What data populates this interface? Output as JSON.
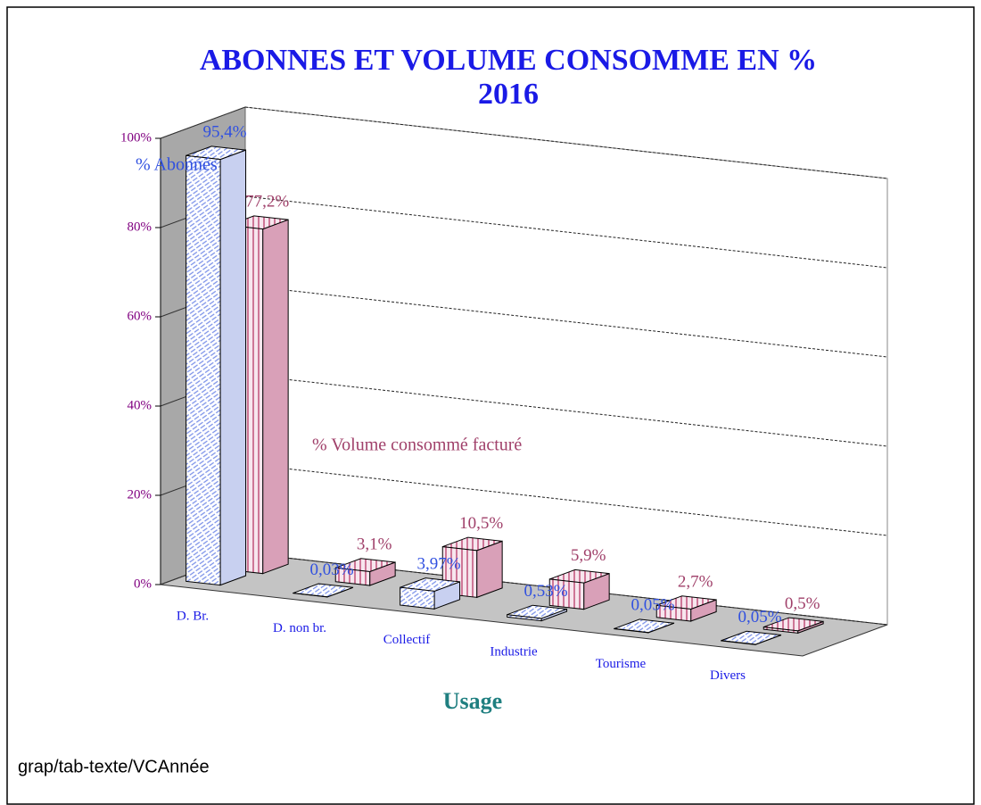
{
  "chart_data": {
    "type": "bar3d",
    "title": [
      "ABONNES ET VOLUME CONSOMME EN %",
      "2016"
    ],
    "xlabel": "Usage",
    "categories": [
      "D. Br.",
      "D. non br.",
      "Collectif",
      "Industrie",
      "Tourisme",
      "Divers"
    ],
    "series": [
      {
        "name": "% Abonnés",
        "color": "#3050e0",
        "values": [
          95.4,
          0.03,
          3.97,
          0.53,
          0.05,
          0.05
        ],
        "value_labels": [
          "95,4%",
          "0,03%",
          "3,97%",
          "0,53%",
          "0,05%",
          "0,05%"
        ]
      },
      {
        "name": "% Volume consommé facturé",
        "color": "#a0406a",
        "values": [
          77.2,
          3.1,
          10.5,
          5.9,
          2.7,
          0.5
        ],
        "value_labels": [
          "77,2%",
          "3,1%",
          "10,5%",
          "5,9%",
          "2,7%",
          "0,5%"
        ]
      }
    ],
    "ylim": [
      0,
      100
    ],
    "yticks": [
      {
        "value": 0,
        "label": "0%"
      },
      {
        "value": 20,
        "label": "20%"
      },
      {
        "value": 40,
        "label": "40%"
      },
      {
        "value": 60,
        "label": "60%"
      },
      {
        "value": 80,
        "label": "80%"
      },
      {
        "value": 100,
        "label": "100%"
      }
    ],
    "grid": true
  },
  "footer": "grap/tab-texte/VCAnnée"
}
